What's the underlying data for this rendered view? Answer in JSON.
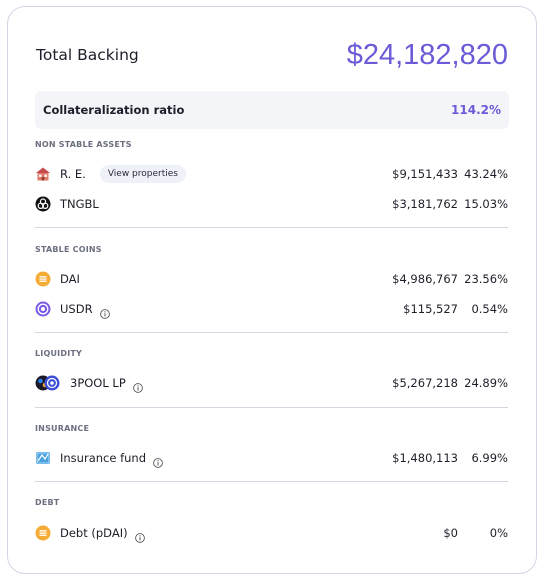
{
  "header": {
    "title": "Total Backing",
    "total": "$24,182,820"
  },
  "ratio": {
    "label": "Collateralization ratio",
    "value": "114.2%"
  },
  "sections": [
    {
      "title": "NON STABLE ASSETS",
      "rows": [
        {
          "name": "R. E.",
          "button": "View properties",
          "amount": "$9,151,433",
          "pct": "43.24%",
          "icon": "house-icon"
        },
        {
          "name": "TNGBL",
          "amount": "$3,181,762",
          "pct": "15.03%",
          "icon": "tngbl-logo-icon"
        }
      ]
    },
    {
      "title": "STABLE COINS",
      "rows": [
        {
          "name": "DAI",
          "amount": "$4,986,767",
          "pct": "23.56%",
          "icon": "dai-coin-icon"
        },
        {
          "name": "USDR",
          "amount": "$115,527",
          "pct": "0.54%",
          "icon": "usdr-coin-icon",
          "info": "info-icon"
        }
      ]
    },
    {
      "title": "LIQUIDITY",
      "rows": [
        {
          "name": "3POOL LP",
          "amount": "$5,267,218",
          "pct": "24.89%",
          "icon": "3pool-lp-icon",
          "info": "info-icon"
        }
      ]
    },
    {
      "title": "INSURANCE",
      "rows": [
        {
          "name": "Insurance fund",
          "amount": "$1,480,113",
          "pct": "6.99%",
          "icon": "insurance-fund-icon",
          "info": "info-icon"
        }
      ]
    },
    {
      "title": "DEBT",
      "rows": [
        {
          "name": "Debt (pDAI)",
          "amount": "$0",
          "pct": "0%",
          "icon": "pdai-coin-icon",
          "info": "info-icon"
        }
      ]
    }
  ],
  "colors": {
    "accent": "#6a5bd6",
    "dai": "#f5ac37",
    "usdr": "#7b5ce6",
    "divider": "#d4d7e2"
  }
}
